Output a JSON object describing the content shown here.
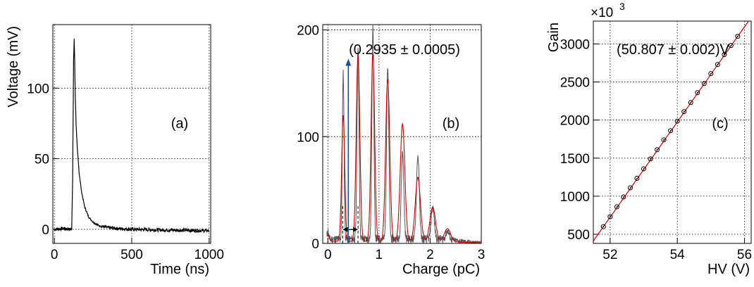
{
  "chart_data": [
    {
      "type": "line",
      "panel_label": "(a)",
      "xlabel": "Time (ns)",
      "ylabel": "Voltage (mV)",
      "xlim": [
        -10,
        1010
      ],
      "ylim": [
        -10,
        145
      ],
      "xticks": [
        "0",
        "500",
        "1000"
      ],
      "yticks": [
        "0",
        "50",
        "100"
      ],
      "grid": true,
      "series": [
        {
          "color": "#000000",
          "x": [
            0,
            60,
            100,
            112,
            118,
            124,
            128,
            131,
            135,
            140,
            148,
            160,
            175,
            195,
            220,
            250,
            290,
            340,
            400,
            500,
            700,
            1000
          ],
          "y": [
            0,
            0.5,
            0,
            1,
            35,
            120,
            135,
            120,
            95,
            75,
            57,
            40,
            27,
            16,
            9,
            5,
            2.5,
            1.2,
            0.6,
            0,
            -0.5,
            -1
          ]
        }
      ]
    },
    {
      "type": "line",
      "panel_label": "(b)",
      "xlabel": "Charge (pC)",
      "ylabel": "",
      "xlim": [
        -0.1,
        3
      ],
      "ylim": [
        0,
        205
      ],
      "xticks": [
        "0",
        "1",
        "2",
        "3"
      ],
      "yticks": [
        "0",
        "100",
        "200"
      ],
      "grid": true,
      "annotation": "(0.2935 ± 0.0005)",
      "peaks": {
        "positions": [
          0.0,
          0.3,
          0.59,
          0.88,
          1.17,
          1.46,
          1.76,
          2.05,
          2.34
        ],
        "data_heights": [
          8,
          157,
          178,
          200,
          162,
          82,
          78,
          30,
          8
        ],
        "fit_heights": [
          6,
          118,
          176,
          175,
          152,
          110,
          60,
          32,
          12
        ],
        "widths": [
          0.025,
          0.03,
          0.035,
          0.035,
          0.04,
          0.045,
          0.05,
          0.055,
          0.06
        ],
        "noise_base": 4
      },
      "series": [
        {
          "name": "data",
          "color": "#555555"
        },
        {
          "name": "fit",
          "color": "#cc0000"
        }
      ],
      "arrow": {
        "x": 0.4,
        "y_from": 0,
        "y_to": 173,
        "color": "#1f4e9c"
      },
      "spacing_marker": {
        "x_from": 0.29,
        "x_to": 0.59,
        "y": 13
      }
    },
    {
      "type": "scatter",
      "panel_label": "(c)",
      "xlabel": "HV (V)",
      "ylabel": "Gain",
      "multiplier_label": "×10",
      "multiplier_exp": "3",
      "xlim": [
        51.5,
        56.2
      ],
      "ylim": [
        380,
        3300
      ],
      "xticks": [
        "52",
        "54",
        "56"
      ],
      "yticks": [
        "500",
        "1000",
        "1500",
        "2000",
        "2500",
        "3000"
      ],
      "grid": true,
      "annotation": "(50.807 ± 0.002)V",
      "points": {
        "x": [
          51.8,
          52.0,
          52.2,
          52.4,
          52.6,
          52.8,
          53.0,
          53.2,
          53.4,
          53.6,
          53.8,
          54.0,
          54.2,
          54.4,
          54.6,
          54.8,
          55.0,
          55.2,
          55.4,
          55.6,
          55.8
        ],
        "y": [
          600,
          730,
          860,
          990,
          1110,
          1235,
          1360,
          1490,
          1610,
          1740,
          1860,
          1985,
          2110,
          2230,
          2360,
          2480,
          2610,
          2730,
          2860,
          2980,
          3100
        ]
      },
      "fit": {
        "color": "#cc0000",
        "x": [
          51.5,
          56.2
        ],
        "y": [
          412,
          3350
        ]
      }
    }
  ]
}
